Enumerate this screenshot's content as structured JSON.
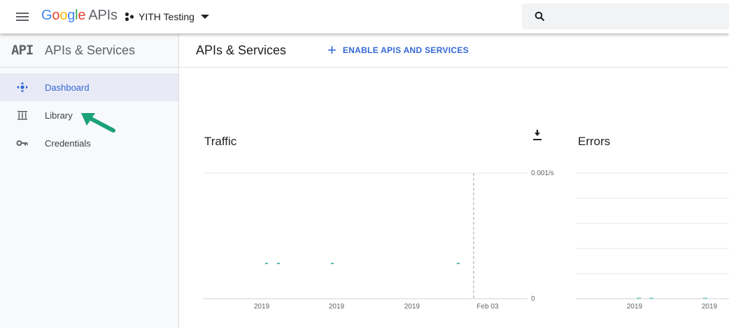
{
  "header": {
    "logo_google": "Google",
    "logo_apis": "APIs",
    "project_name": "YITH Testing",
    "search_placeholder": ""
  },
  "sidebar": {
    "mark": "API",
    "title": "APIs & Services",
    "items": [
      {
        "label": "Dashboard",
        "icon": "dashboard-icon",
        "active": true
      },
      {
        "label": "Library",
        "icon": "library-icon",
        "active": false
      },
      {
        "label": "Credentials",
        "icon": "key-icon",
        "active": false
      }
    ]
  },
  "main": {
    "title": "APIs & Services",
    "enable_button": "ENABLE APIS AND SERVICES"
  },
  "traffic": {
    "title": "Traffic",
    "y_top_label": "0.001/s",
    "y_bottom_label": "0",
    "x_labels": [
      "2019",
      "2019",
      "2019",
      "Feb 03"
    ]
  },
  "errors": {
    "title": "Errors",
    "x_labels": [
      "2019",
      "2019"
    ]
  },
  "colors": {
    "accent": "#3367d6",
    "annotation_arrow": "#1aa179",
    "series": "#26a69a"
  }
}
